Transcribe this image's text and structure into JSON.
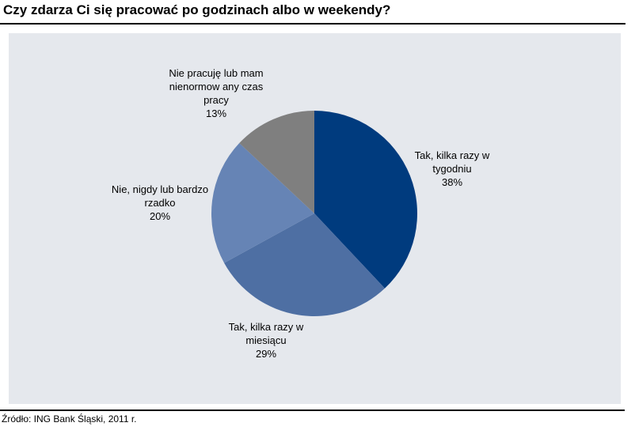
{
  "title": "Czy zdarza Ci się pracować po godzinach albo w weekendy?",
  "source": "Źródło: ING Bank Śląski, 2011 r.",
  "colors": {
    "panel_background": "#E5E8ED",
    "title_text": "#000000",
    "rule": "#000000",
    "slice_dark_navy": "#003B7E",
    "slice_medium_blue": "#4E6FA3",
    "slice_light_blue": "#6684B5",
    "slice_gray": "#7F7F7F"
  },
  "chart_data": {
    "type": "pie",
    "title": "Czy zdarza Ci się pracować po godzinach albo w weekendy?",
    "legend_position": "none",
    "labels_position": "outside",
    "start_angle_deg": 0,
    "direction": "clockwise",
    "categories": [
      "Tak, kilka razy w tygodniu",
      "Tak, kilka razy w miesiącu",
      "Nie, nigdy lub bardzo rzadko",
      "Nie pracuję lub mam nienormow any czas pracy"
    ],
    "values": [
      38,
      29,
      20,
      13
    ],
    "slices": [
      {
        "name": "Tak, kilka razy w tygodniu",
        "value": 38,
        "pct_label": "38%",
        "color": "#003B7E",
        "label_lines": [
          "Tak, kilka razy w",
          "tygodniu"
        ]
      },
      {
        "name": "Tak, kilka razy w miesiącu",
        "value": 29,
        "pct_label": "29%",
        "color": "#4E6FA3",
        "label_lines": [
          "Tak, kilka razy w",
          "miesiącu"
        ]
      },
      {
        "name": "Nie, nigdy lub bardzo rzadko",
        "value": 20,
        "pct_label": "20%",
        "color": "#6684B5",
        "label_lines": [
          "Nie, nigdy lub bardzo",
          "rzadko"
        ]
      },
      {
        "name": "Nie pracuję lub mam nienormow any czas pracy",
        "value": 13,
        "pct_label": "13%",
        "color": "#7F7F7F",
        "label_lines": [
          "Nie pracuję lub mam",
          "nienormow any czas",
          "pracy"
        ]
      }
    ]
  }
}
